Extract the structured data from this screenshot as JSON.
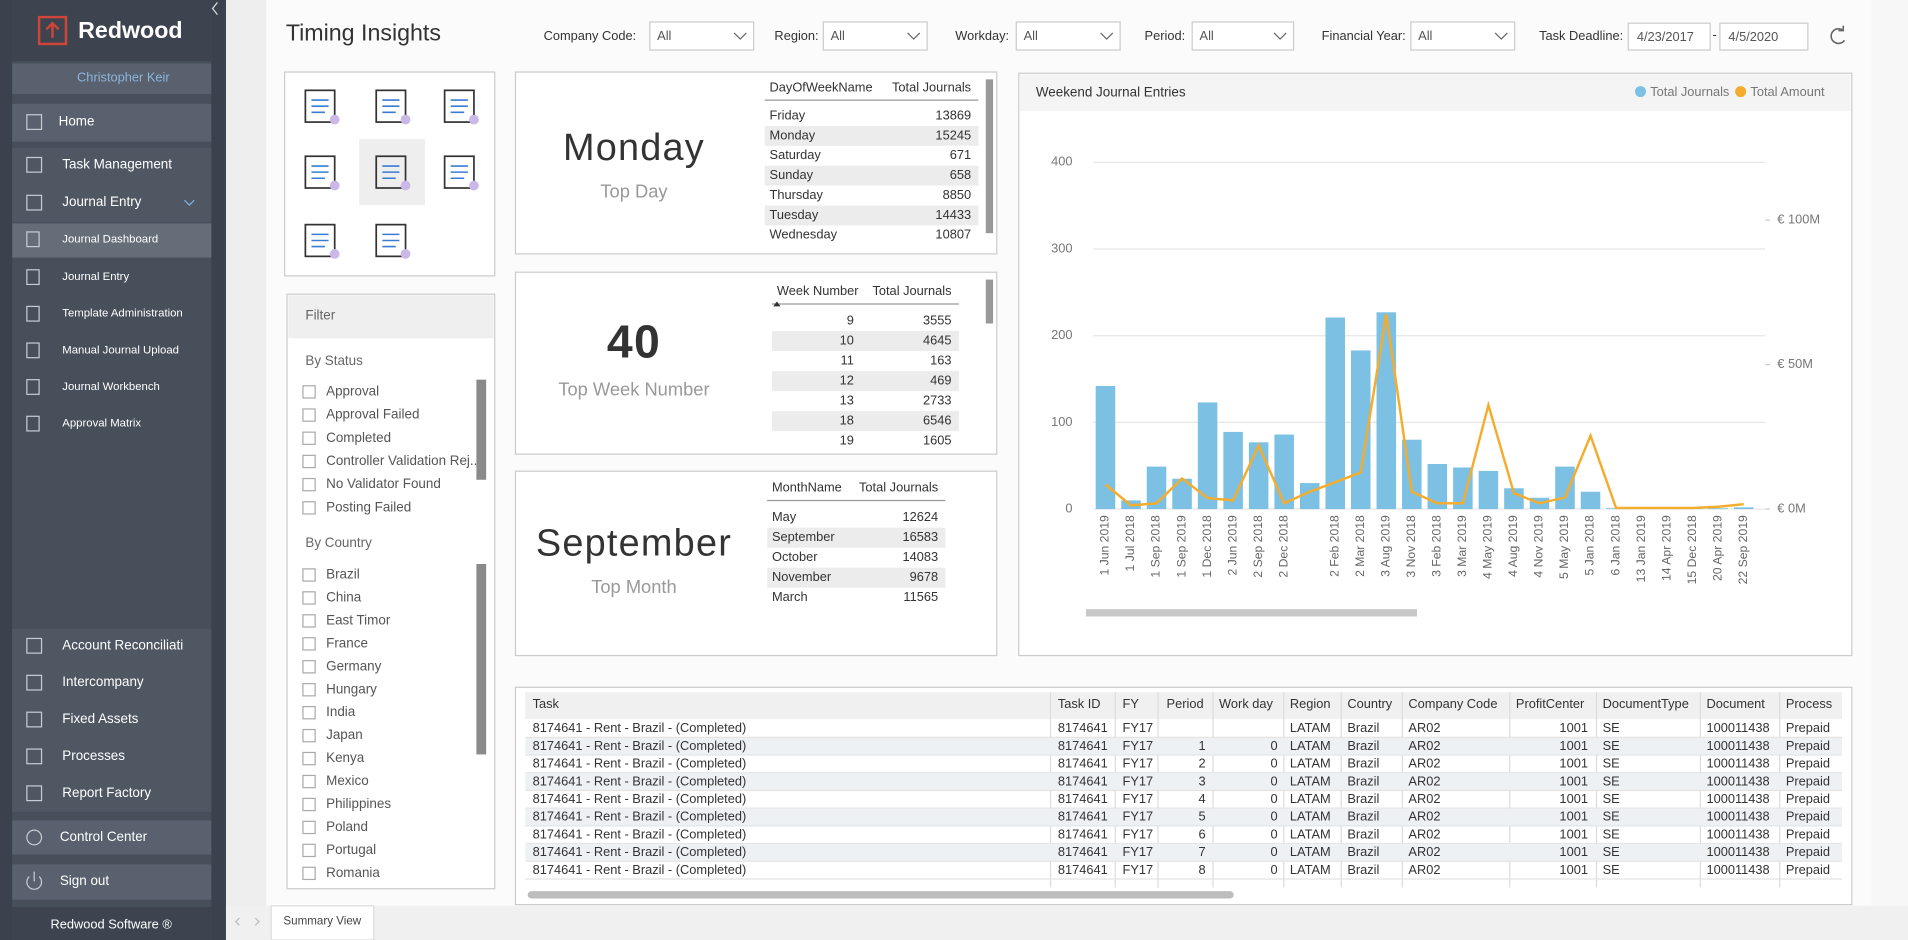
{
  "sidebar": {
    "brand": "Redwood",
    "user": "Christopher Keir",
    "nav": [
      "Home",
      "Task Management",
      "Journal Entry",
      "Journal Dashboard",
      "Journal Entry",
      "Template Administration",
      "Manual Journal Upload",
      "Journal Workbench",
      "Approval Matrix"
    ],
    "bottom_nav": [
      "Account Reconciliati",
      "Intercompany",
      "Fixed Assets",
      "Processes",
      "Report Factory"
    ],
    "control_center": "Control Center",
    "sign_out": "Sign out",
    "footer": "Redwood Software ®"
  },
  "header": {
    "title": "Timing Insights",
    "filters": [
      {
        "label": "Company Code:",
        "value": "All"
      },
      {
        "label": "Region:",
        "value": "All"
      },
      {
        "label": "Workday:",
        "value": "All"
      },
      {
        "label": "Period:",
        "value": "All"
      },
      {
        "label": "Financial Year:",
        "value": "All"
      }
    ],
    "deadline": {
      "label": "Task Deadline:",
      "from": "4/23/2017",
      "separator": "-",
      "to": "4/5/2020"
    }
  },
  "filter_panel": {
    "title": "Filter",
    "status": {
      "title": "By Status",
      "items": [
        "Approval",
        "Approval Failed",
        "Completed",
        "Controller Validation Rej...",
        "No Validator Found",
        "Posting Failed"
      ]
    },
    "country": {
      "title": "By Country",
      "items": [
        "Brazil",
        "China",
        "East Timor",
        "France",
        "Germany",
        "Hungary",
        "India",
        "Japan",
        "Kenya",
        "Mexico",
        "Philippines",
        "Poland",
        "Portugal",
        "Romania"
      ]
    }
  },
  "cards": [
    {
      "value": "Monday",
      "caption": "Top Day",
      "columns": [
        "DayOfWeekName",
        "Total Journals"
      ],
      "rows": [
        [
          "Friday",
          13869
        ],
        [
          "Monday",
          15245
        ],
        [
          "Saturday",
          671
        ],
        [
          "Sunday",
          658
        ],
        [
          "Thursday",
          8850
        ],
        [
          "Tuesday",
          14433
        ],
        [
          "Wednesday",
          10807
        ]
      ]
    },
    {
      "value": 40,
      "caption": "Top Week Number",
      "columns": [
        "Week Number",
        "Total Journals"
      ],
      "rows": [
        [
          9,
          3555
        ],
        [
          10,
          4645
        ],
        [
          11,
          163
        ],
        [
          12,
          469
        ],
        [
          13,
          2733
        ],
        [
          18,
          6546
        ],
        [
          19,
          1605
        ]
      ]
    },
    {
      "value": "September",
      "caption": "Top Month",
      "columns": [
        "MonthName",
        "Total Journals"
      ],
      "rows": [
        [
          "May",
          12624
        ],
        [
          "September",
          16583
        ],
        [
          "October",
          14083
        ],
        [
          "November",
          9678
        ],
        [
          "March",
          11565
        ]
      ]
    }
  ],
  "chart_data": {
    "type": "bar",
    "title": "Weekend Journal Entries",
    "categories": [
      "1 Jun 2019",
      "1 Jul 2018",
      "1 Sep 2018",
      "1 Sep 2019",
      "1 Dec 2018",
      "2 Jun 2019",
      "2 Sep 2018",
      "2 Dec 2018",
      null,
      "2 Feb 2018",
      "2 Mar 2018",
      "3 Aug 2019",
      "3 Nov 2018",
      "3 Feb 2018",
      "3 Mar 2019",
      "4 May 2019",
      "4 Aug 2019",
      "4 Nov 2019",
      "5 May 2019",
      "5 Jan 2018",
      "6 Jan 2018",
      "13 Jan 2019",
      "14 Apr 2019",
      "15 Dec 2018",
      "20 Apr 2019",
      "22 Sep 2019"
    ],
    "series": [
      {
        "name": "Total Journals",
        "color": "#7cc1e4",
        "values": [
          142,
          10,
          49,
          35,
          123,
          89,
          77,
          86,
          30,
          221,
          183,
          227,
          80,
          52,
          48,
          44,
          24,
          13,
          49,
          20,
          1,
          1,
          1,
          1,
          1,
          2
        ]
      },
      {
        "name": "Total Amount",
        "color": "#f5ac2c",
        "type": "line",
        "axis": "y2",
        "values": [
          8500000,
          1300000,
          2000000,
          10600000,
          3800000,
          3000000,
          22000000,
          2000000,
          6000000,
          9300000,
          12700000,
          67400000,
          6000000,
          2000000,
          2000000,
          36000000,
          5500000,
          2000000,
          4000000,
          25400000,
          400000,
          400000,
          400000,
          400000,
          800000,
          1700000
        ]
      }
    ],
    "ylim": [
      0,
      400
    ],
    "yticks": [
      0,
      100,
      200,
      300,
      400
    ],
    "y2lim": [
      0,
      120000000
    ],
    "y2ticks": [
      {
        "value": 0,
        "label": "€ 0M"
      },
      {
        "value": 50000000,
        "label": "€ 50M"
      },
      {
        "value": 100000000,
        "label": "€ 100M"
      }
    ],
    "grid": true,
    "legend": "top-right"
  },
  "table": {
    "columns": [
      "Task",
      "Task ID",
      "FY",
      "Period",
      "Work day",
      "Region",
      "Country",
      "Company Code",
      "ProfitCenter",
      "DocumentType",
      "Document",
      "Process"
    ],
    "rows": [
      [
        "8174641 - Rent - Brazil - (Completed)",
        8174641,
        "FY17",
        null,
        null,
        "LATAM",
        "Brazil",
        "AR02",
        1001,
        "SE",
        100011438,
        "Prepaid"
      ],
      [
        "8174641 - Rent - Brazil - (Completed)",
        8174641,
        "FY17",
        1,
        0,
        "LATAM",
        "Brazil",
        "AR02",
        1001,
        "SE",
        100011438,
        "Prepaid"
      ],
      [
        "8174641 - Rent - Brazil - (Completed)",
        8174641,
        "FY17",
        2,
        0,
        "LATAM",
        "Brazil",
        "AR02",
        1001,
        "SE",
        100011438,
        "Prepaid"
      ],
      [
        "8174641 - Rent - Brazil - (Completed)",
        8174641,
        "FY17",
        3,
        0,
        "LATAM",
        "Brazil",
        "AR02",
        1001,
        "SE",
        100011438,
        "Prepaid"
      ],
      [
        "8174641 - Rent - Brazil - (Completed)",
        8174641,
        "FY17",
        4,
        0,
        "LATAM",
        "Brazil",
        "AR02",
        1001,
        "SE",
        100011438,
        "Prepaid"
      ],
      [
        "8174641 - Rent - Brazil - (Completed)",
        8174641,
        "FY17",
        5,
        0,
        "LATAM",
        "Brazil",
        "AR02",
        1001,
        "SE",
        100011438,
        "Prepaid"
      ],
      [
        "8174641 - Rent - Brazil - (Completed)",
        8174641,
        "FY17",
        6,
        0,
        "LATAM",
        "Brazil",
        "AR02",
        1001,
        "SE",
        100011438,
        "Prepaid"
      ],
      [
        "8174641 - Rent - Brazil - (Completed)",
        8174641,
        "FY17",
        7,
        0,
        "LATAM",
        "Brazil",
        "AR02",
        1001,
        "SE",
        100011438,
        "Prepaid"
      ],
      [
        "8174641 - Rent - Brazil - (Completed)",
        8174641,
        "FY17",
        8,
        0,
        "LATAM",
        "Brazil",
        "AR02",
        1001,
        "SE",
        100011438,
        "Prepaid"
      ]
    ]
  },
  "tabs": [
    "Summary View"
  ]
}
